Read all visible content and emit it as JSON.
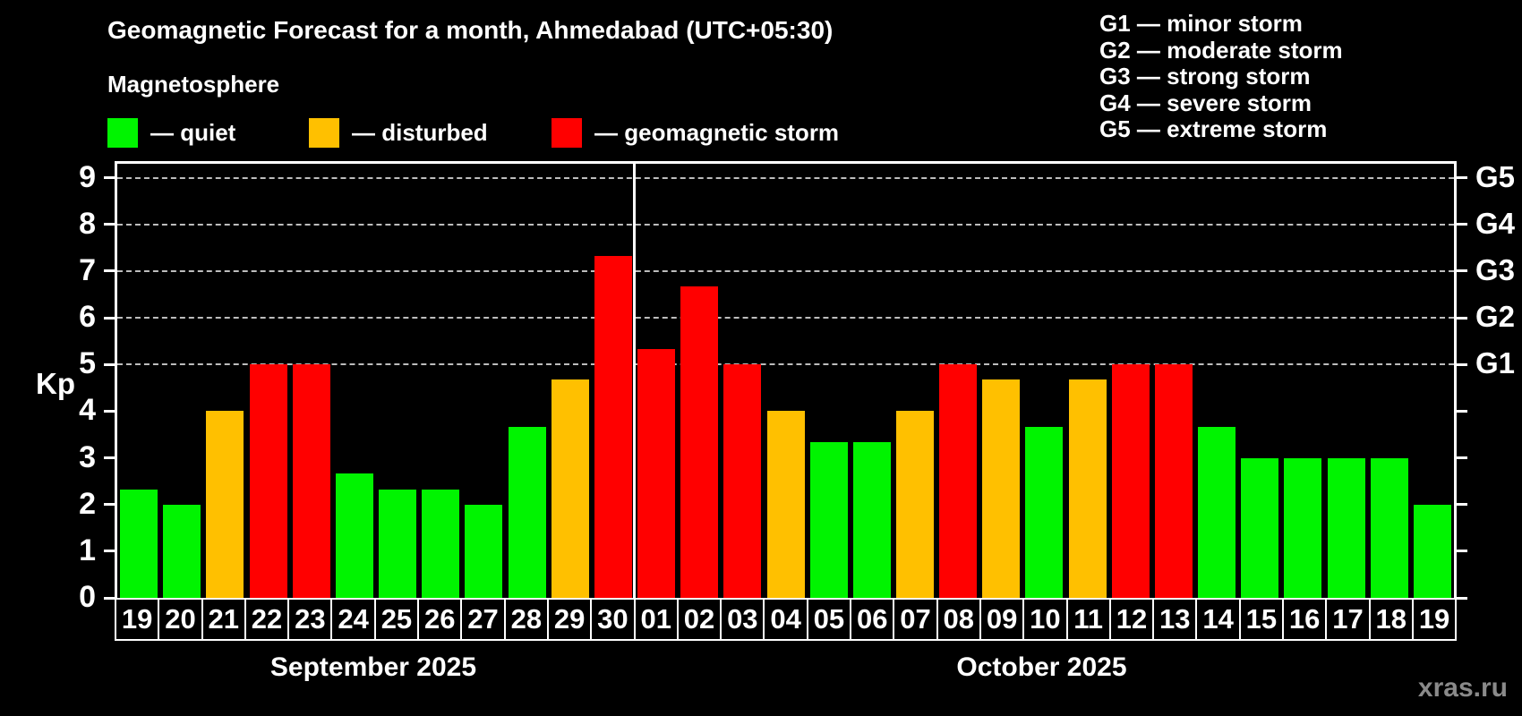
{
  "header": {
    "title": "Geomagnetic Forecast for a month, Ahmedabad (UTC+05:30)",
    "subtitle": "Magnetosphere",
    "legend": [
      {
        "status": "quiet",
        "label": "— quiet"
      },
      {
        "status": "disturbed",
        "label": "— disturbed"
      },
      {
        "status": "storm",
        "label": "— geomagnetic storm"
      }
    ],
    "g_legend": [
      "G1 — minor storm",
      "G2 — moderate storm",
      "G3 — strong storm",
      "G4 — severe storm",
      "G5 — extreme storm"
    ]
  },
  "colors": {
    "quiet": "#00f400",
    "disturbed": "#ffc000",
    "storm": "#ff0000",
    "background": "#000000",
    "frame": "#ffffff",
    "gridline": "#bdbdbd",
    "watermark": "#8a8a8a"
  },
  "chart_data": {
    "type": "bar",
    "title": "Geomagnetic Forecast for a month, Ahmedabad (UTC+05:30)",
    "ylabel": "Kp",
    "ylim": [
      0,
      9.3
    ],
    "yticks": [
      0,
      1,
      2,
      3,
      4,
      5,
      6,
      7,
      8,
      9
    ],
    "gridlines": [
      5,
      6,
      7,
      8,
      9
    ],
    "grid": "dashed, levels 5-9 only",
    "right_axis_labels": [
      {
        "kp": 5,
        "label": "G1"
      },
      {
        "kp": 6,
        "label": "G2"
      },
      {
        "kp": 7,
        "label": "G3"
      },
      {
        "kp": 8,
        "label": "G4"
      },
      {
        "kp": 9,
        "label": "G5"
      }
    ],
    "categories": [
      "19",
      "20",
      "21",
      "22",
      "23",
      "24",
      "25",
      "26",
      "27",
      "28",
      "29",
      "30",
      "01",
      "02",
      "03",
      "04",
      "05",
      "06",
      "07",
      "08",
      "09",
      "10",
      "11",
      "12",
      "13",
      "14",
      "15",
      "16",
      "17",
      "18",
      "19"
    ],
    "values": [
      2.33,
      2.0,
      4.0,
      5.0,
      5.0,
      2.67,
      2.33,
      2.33,
      2.0,
      3.67,
      4.67,
      7.33,
      5.33,
      6.67,
      5.0,
      4.0,
      3.33,
      3.33,
      4.0,
      5.0,
      4.67,
      3.67,
      4.67,
      5.0,
      5.0,
      3.67,
      3.0,
      3.0,
      3.0,
      3.0,
      2.0
    ],
    "statuses": [
      "quiet",
      "quiet",
      "disturbed",
      "storm",
      "storm",
      "quiet",
      "quiet",
      "quiet",
      "quiet",
      "quiet",
      "disturbed",
      "storm",
      "storm",
      "storm",
      "storm",
      "disturbed",
      "quiet",
      "quiet",
      "disturbed",
      "storm",
      "disturbed",
      "quiet",
      "disturbed",
      "storm",
      "storm",
      "quiet",
      "quiet",
      "quiet",
      "quiet",
      "quiet",
      "quiet"
    ],
    "month_groups": [
      {
        "label": "September 2025",
        "start": 0,
        "count": 12
      },
      {
        "label": "October 2025",
        "start": 12,
        "count": 19
      }
    ],
    "divider_after_index": 11,
    "legend_position": "top-left",
    "bar_colors_meaning": "quiet=green, disturbed=orange, geomagnetic storm=red"
  },
  "watermark": "xras.ru"
}
